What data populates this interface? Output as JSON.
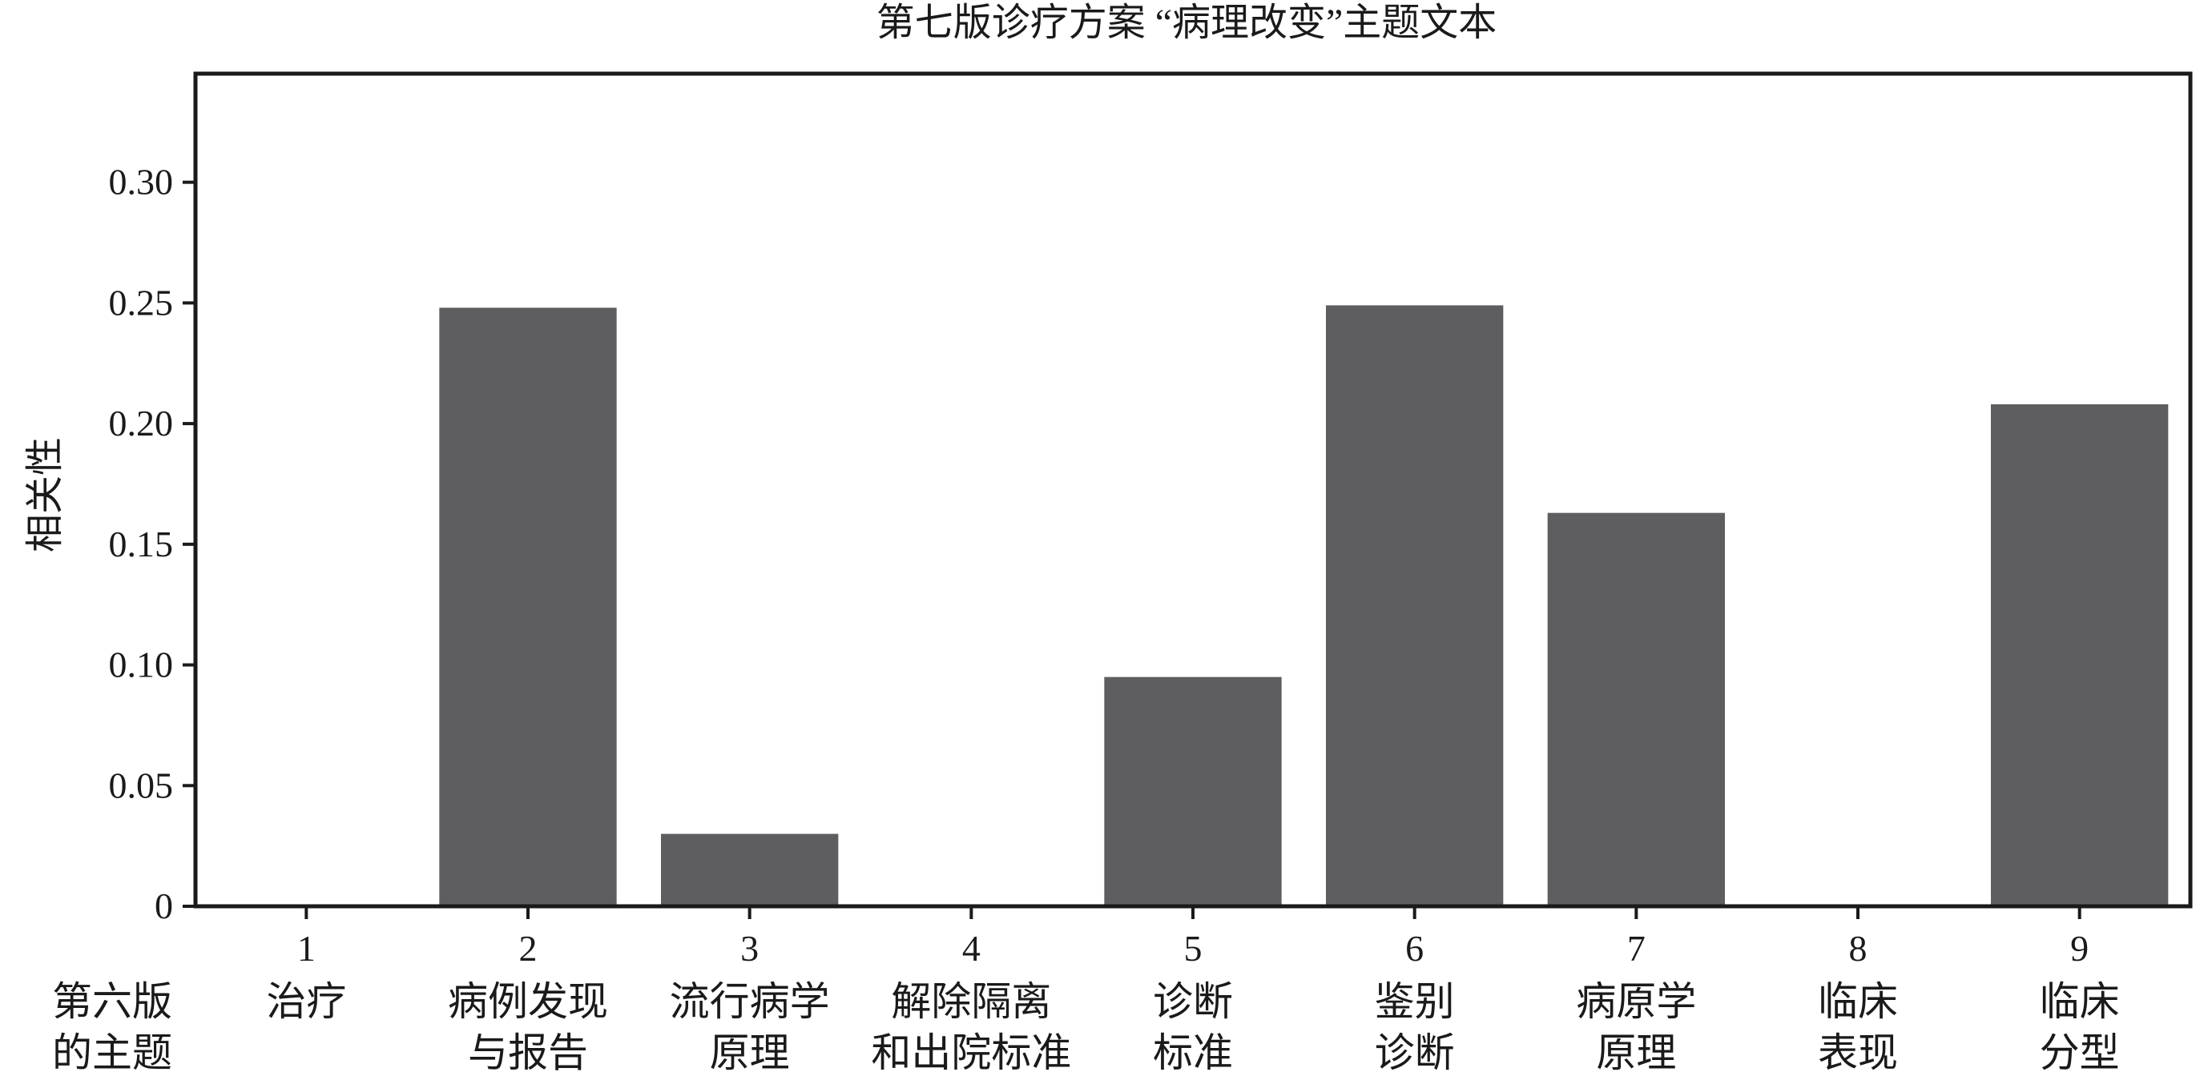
{
  "chart_data": {
    "type": "bar",
    "title": "第七版诊疗方案 “病理改变”主题文本",
    "ylabel": "相关性",
    "xlabel": "",
    "row_header": [
      "第六版",
      "的主题"
    ],
    "ylim": [
      0,
      0.345
    ],
    "yticks": [
      "0",
      "0.05",
      "0.10",
      "0.15",
      "0.20",
      "0.25",
      "0.30"
    ],
    "ytick_values": [
      0,
      0.05,
      0.1,
      0.15,
      0.2,
      0.25,
      0.3
    ],
    "grid": false,
    "categories": [
      "1",
      "2",
      "3",
      "4",
      "5",
      "6",
      "7",
      "8",
      "9"
    ],
    "category_names": [
      [
        "治疗"
      ],
      [
        "病例发现",
        "与报告"
      ],
      [
        "流行病学",
        "原理"
      ],
      [
        "解除隔离",
        "和出院标准"
      ],
      [
        "诊断",
        "标准"
      ],
      [
        "鉴别",
        "诊断"
      ],
      [
        "病原学",
        "原理"
      ],
      [
        "临床",
        "表现"
      ],
      [
        "临床",
        "分型"
      ]
    ],
    "values": [
      0,
      0.248,
      0.03,
      0,
      0.095,
      0.249,
      0.163,
      0,
      0.208
    ],
    "bar_color": "#5e5d5f"
  }
}
